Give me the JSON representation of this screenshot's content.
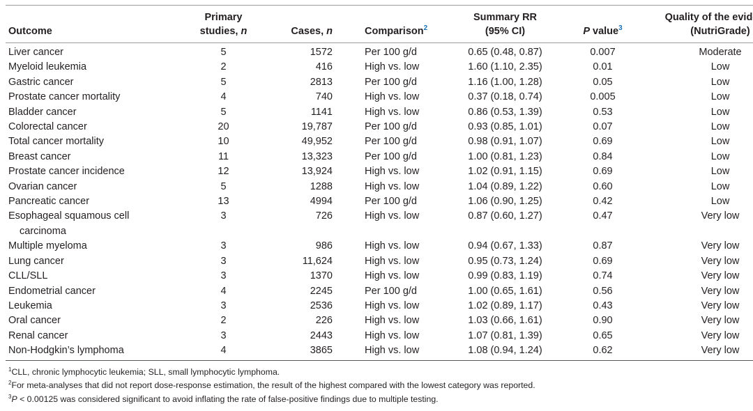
{
  "headers": {
    "outcome": "Outcome",
    "studies_line1": "Primary",
    "studies_line2": "studies,",
    "studies_n": "n",
    "cases": "Cases,",
    "cases_n": "n",
    "comparison": "Comparison",
    "comparison_sup": "2",
    "rr_line1": "Summary RR",
    "rr_line2": "(95% CI)",
    "p_italic": "P",
    "p_rest": " value",
    "p_sup": "3",
    "quality_line1": "Quality of the evidence",
    "quality_line2": "(NutriGrade)"
  },
  "rows": [
    {
      "outcome": "Liver cancer",
      "studies": "5",
      "cases": "1572",
      "comparison": "Per 100 g/d",
      "rr": "0.65 (0.48, 0.87)",
      "p": "0.007",
      "quality": "Moderate"
    },
    {
      "outcome": "Myeloid leukemia",
      "studies": "2",
      "cases": "416",
      "comparison": "High vs. low",
      "rr": "1.60 (1.10, 2.35)",
      "p": "0.01",
      "quality": "Low"
    },
    {
      "outcome": "Gastric cancer",
      "studies": "5",
      "cases": "2813",
      "comparison": "Per 100 g/d",
      "rr": "1.16 (1.00, 1.28)",
      "p": "0.05",
      "quality": "Low"
    },
    {
      "outcome": "Prostate cancer mortality",
      "studies": "4",
      "cases": "740",
      "comparison": "High vs. low",
      "rr": "0.37 (0.18, 0.74)",
      "p": "0.005",
      "quality": "Low"
    },
    {
      "outcome": "Bladder cancer",
      "studies": "5",
      "cases": "1141",
      "comparison": "High vs. low",
      "rr": "0.86 (0.53, 1.39)",
      "p": "0.53",
      "quality": "Low"
    },
    {
      "outcome": "Colorectal cancer",
      "studies": "20",
      "cases": "19,787",
      "comparison": "Per 100 g/d",
      "rr": "0.93 (0.85, 1.01)",
      "p": "0.07",
      "quality": "Low"
    },
    {
      "outcome": "Total cancer mortality",
      "studies": "10",
      "cases": "49,952",
      "comparison": "Per 100 g/d",
      "rr": "0.98 (0.91, 1.07)",
      "p": "0.69",
      "quality": "Low"
    },
    {
      "outcome": "Breast cancer",
      "studies": "11",
      "cases": "13,323",
      "comparison": "Per 100 g/d",
      "rr": "1.00 (0.81, 1.23)",
      "p": "0.84",
      "quality": "Low"
    },
    {
      "outcome": "Prostate cancer incidence",
      "studies": "12",
      "cases": "13,924",
      "comparison": "High vs. low",
      "rr": "1.02 (0.91, 1.15)",
      "p": "0.69",
      "quality": "Low"
    },
    {
      "outcome": "Ovarian cancer",
      "studies": "5",
      "cases": "1288",
      "comparison": "High vs. low",
      "rr": "1.04 (0.89, 1.22)",
      "p": "0.60",
      "quality": "Low"
    },
    {
      "outcome": "Pancreatic cancer",
      "studies": "13",
      "cases": "4994",
      "comparison": "Per 100 g/d",
      "rr": "1.06 (0.90, 1.25)",
      "p": "0.42",
      "quality": "Low"
    },
    {
      "outcome": "Esophageal squamous cell",
      "outcome_cont": "carcinoma",
      "studies": "3",
      "cases": "726",
      "comparison": "High vs. low",
      "rr": "0.87 (0.60, 1.27)",
      "p": "0.47",
      "quality": "Very low"
    },
    {
      "outcome": "Multiple myeloma",
      "studies": "3",
      "cases": "986",
      "comparison": "High vs. low",
      "rr": "0.94 (0.67, 1.33)",
      "p": "0.87",
      "quality": "Very low"
    },
    {
      "outcome": "Lung cancer",
      "studies": "3",
      "cases": "11,624",
      "comparison": "High vs. low",
      "rr": "0.95 (0.73, 1.24)",
      "p": "0.69",
      "quality": "Very low"
    },
    {
      "outcome": "CLL/SLL",
      "studies": "3",
      "cases": "1370",
      "comparison": "High vs. low",
      "rr": "0.99 (0.83, 1.19)",
      "p": "0.74",
      "quality": "Very low"
    },
    {
      "outcome": "Endometrial cancer",
      "studies": "4",
      "cases": "2245",
      "comparison": "Per 100 g/d",
      "rr": "1.00 (0.65, 1.61)",
      "p": "0.56",
      "quality": "Very low"
    },
    {
      "outcome": "Leukemia",
      "studies": "3",
      "cases": "2536",
      "comparison": "High vs. low",
      "rr": "1.02 (0.89, 1.17)",
      "p": "0.43",
      "quality": "Very low"
    },
    {
      "outcome": "Oral cancer",
      "studies": "2",
      "cases": "226",
      "comparison": "High vs. low",
      "rr": "1.03 (0.66, 1.61)",
      "p": "0.90",
      "quality": "Very low"
    },
    {
      "outcome": "Renal cancer",
      "studies": "3",
      "cases": "2443",
      "comparison": "High vs. low",
      "rr": "1.07 (0.81, 1.39)",
      "p": "0.65",
      "quality": "Very low"
    },
    {
      "outcome": "Non-Hodgkin’s lymphoma",
      "studies": "4",
      "cases": "3865",
      "comparison": "High vs. low",
      "rr": "1.08 (0.94, 1.24)",
      "p": "0.62",
      "quality": "Very low"
    }
  ],
  "footnotes": [
    {
      "marker": "1",
      "text": "CLL, chronic lymphocytic leukemia; SLL, small lymphocytic lymphoma."
    },
    {
      "marker": "2",
      "text": "For meta-analyses that did not report dose-response estimation, the result of the highest compared with the lowest category was reported."
    },
    {
      "marker": "3",
      "italic": "P",
      "text": " < 0.00125 was considered significant to avoid inflating the rate of false-positive findings due to multiple testing."
    }
  ],
  "colors": {
    "text": "#231f20",
    "footnote_link": "#1a6fb5",
    "rule": "#9a9a9a"
  }
}
